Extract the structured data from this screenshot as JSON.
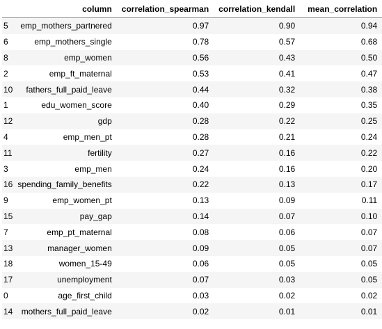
{
  "table": {
    "columns": [
      "column",
      "correlation_spearman",
      "correlation_kendall",
      "mean_correlation"
    ],
    "rows": [
      {
        "index": "5",
        "column": "emp_mothers_partnered",
        "correlation_spearman": "0.97",
        "correlation_kendall": "0.90",
        "mean_correlation": "0.94"
      },
      {
        "index": "6",
        "column": "emp_mothers_single",
        "correlation_spearman": "0.78",
        "correlation_kendall": "0.57",
        "mean_correlation": "0.68"
      },
      {
        "index": "8",
        "column": "emp_women",
        "correlation_spearman": "0.56",
        "correlation_kendall": "0.43",
        "mean_correlation": "0.50"
      },
      {
        "index": "2",
        "column": "emp_ft_maternal",
        "correlation_spearman": "0.53",
        "correlation_kendall": "0.41",
        "mean_correlation": "0.47"
      },
      {
        "index": "10",
        "column": "fathers_full_paid_leave",
        "correlation_spearman": "0.44",
        "correlation_kendall": "0.32",
        "mean_correlation": "0.38"
      },
      {
        "index": "1",
        "column": "edu_women_score",
        "correlation_spearman": "0.40",
        "correlation_kendall": "0.29",
        "mean_correlation": "0.35"
      },
      {
        "index": "12",
        "column": "gdp",
        "correlation_spearman": "0.28",
        "correlation_kendall": "0.22",
        "mean_correlation": "0.25"
      },
      {
        "index": "4",
        "column": "emp_men_pt",
        "correlation_spearman": "0.28",
        "correlation_kendall": "0.21",
        "mean_correlation": "0.24"
      },
      {
        "index": "11",
        "column": "fertility",
        "correlation_spearman": "0.27",
        "correlation_kendall": "0.16",
        "mean_correlation": "0.22"
      },
      {
        "index": "3",
        "column": "emp_men",
        "correlation_spearman": "0.24",
        "correlation_kendall": "0.16",
        "mean_correlation": "0.20"
      },
      {
        "index": "16",
        "column": "spending_family_benefits",
        "correlation_spearman": "0.22",
        "correlation_kendall": "0.13",
        "mean_correlation": "0.17"
      },
      {
        "index": "9",
        "column": "emp_women_pt",
        "correlation_spearman": "0.13",
        "correlation_kendall": "0.09",
        "mean_correlation": "0.11"
      },
      {
        "index": "15",
        "column": "pay_gap",
        "correlation_spearman": "0.14",
        "correlation_kendall": "0.07",
        "mean_correlation": "0.10"
      },
      {
        "index": "7",
        "column": "emp_pt_maternal",
        "correlation_spearman": "0.08",
        "correlation_kendall": "0.06",
        "mean_correlation": "0.07"
      },
      {
        "index": "13",
        "column": "manager_women",
        "correlation_spearman": "0.09",
        "correlation_kendall": "0.05",
        "mean_correlation": "0.07"
      },
      {
        "index": "18",
        "column": "women_15-49",
        "correlation_spearman": "0.06",
        "correlation_kendall": "0.05",
        "mean_correlation": "0.05"
      },
      {
        "index": "17",
        "column": "unemployment",
        "correlation_spearman": "0.07",
        "correlation_kendall": "0.03",
        "mean_correlation": "0.05"
      },
      {
        "index": "0",
        "column": "age_first_child",
        "correlation_spearman": "0.03",
        "correlation_kendall": "0.02",
        "mean_correlation": "0.02"
      },
      {
        "index": "14",
        "column": "mothers_full_paid_leave",
        "correlation_spearman": "0.02",
        "correlation_kendall": "0.01",
        "mean_correlation": "0.01"
      }
    ]
  }
}
